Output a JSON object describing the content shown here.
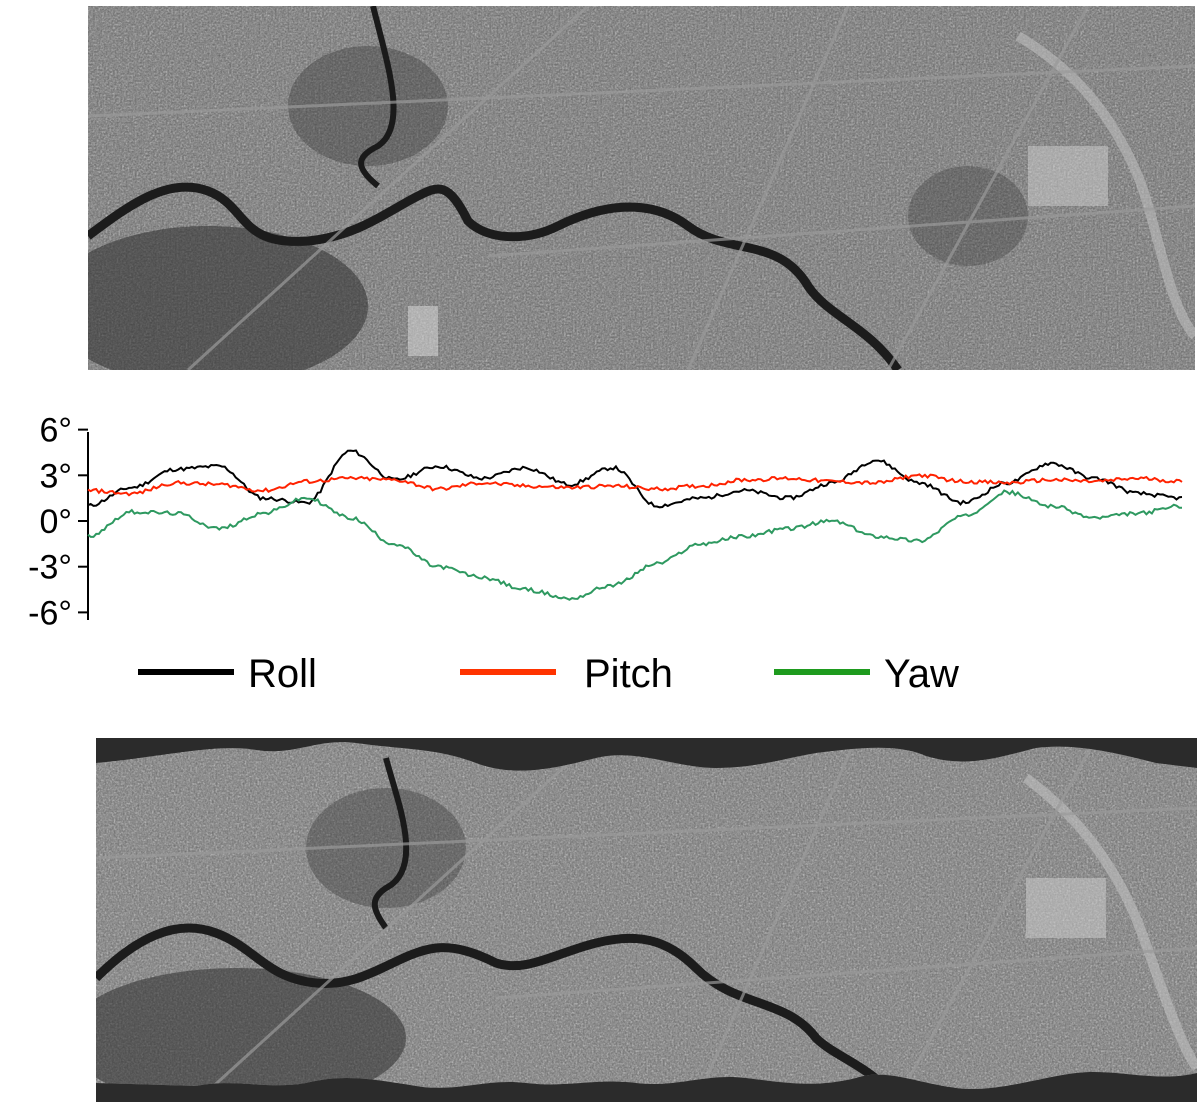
{
  "images": {
    "top": {
      "description": "aerial grayscale image strip (original)"
    },
    "bottom": {
      "description": "aerial grayscale image strip (rectified)"
    }
  },
  "chart_data": {
    "type": "line",
    "title": "",
    "xlabel": "",
    "ylabel": "",
    "ylim": [
      -6.5,
      6.5
    ],
    "yticks": [
      6,
      3,
      0,
      -3,
      -6
    ],
    "ytick_labels": [
      "6°",
      "3°",
      "0°",
      "-3°",
      "-6°"
    ],
    "legend_position": "bottom",
    "x": [
      0,
      0.04,
      0.08,
      0.12,
      0.16,
      0.2,
      0.24,
      0.28,
      0.32,
      0.36,
      0.4,
      0.44,
      0.48,
      0.52,
      0.56,
      0.6,
      0.64,
      0.68,
      0.72,
      0.76,
      0.8,
      0.84,
      0.88,
      0.92,
      0.96,
      1.0
    ],
    "series": [
      {
        "name": "Roll",
        "color": "#000000",
        "values": [
          1.0,
          2.2,
          3.4,
          3.6,
          1.5,
          1.2,
          4.6,
          2.7,
          3.6,
          2.8,
          3.5,
          2.4,
          3.5,
          1.0,
          1.5,
          2.0,
          1.5,
          2.5,
          4.0,
          2.5,
          1.2,
          2.5,
          3.8,
          2.8,
          1.8,
          1.5
        ]
      },
      {
        "name": "Pitch",
        "color": "#ff2200",
        "values": [
          2.0,
          1.8,
          2.5,
          2.4,
          2.0,
          2.6,
          2.8,
          2.7,
          2.1,
          2.5,
          2.3,
          2.2,
          2.3,
          2.1,
          2.3,
          2.7,
          2.8,
          2.6,
          2.5,
          3.0,
          2.6,
          2.5,
          2.7,
          2.6,
          2.8,
          2.6
        ]
      },
      {
        "name": "Yaw",
        "color": "#2e9960",
        "values": [
          -1.0,
          0.6,
          0.5,
          -0.5,
          0.5,
          1.5,
          0.2,
          -1.5,
          -3.0,
          -3.7,
          -4.5,
          -5.1,
          -4.2,
          -2.8,
          -1.5,
          -1.0,
          -0.5,
          0.0,
          -1.0,
          -1.3,
          0.3,
          1.9,
          1.0,
          0.2,
          0.5,
          1.0
        ]
      }
    ]
  }
}
